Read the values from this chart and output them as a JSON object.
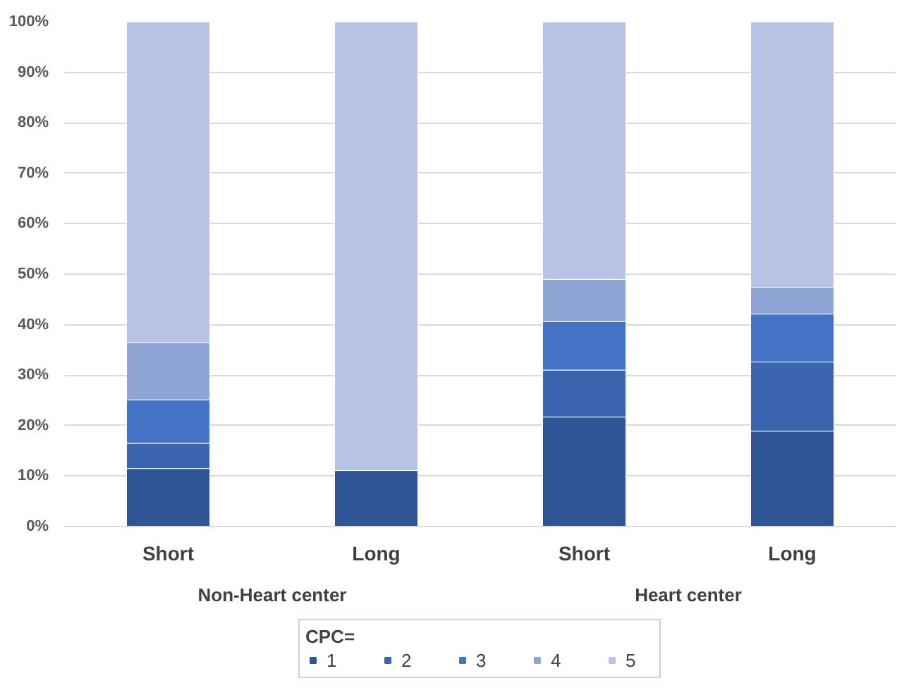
{
  "chart_data": {
    "type": "bar",
    "stacked": true,
    "categories": [
      "Short",
      "Long",
      "Short",
      "Long"
    ],
    "annotations": [
      "Non-Heart center",
      "Heart center"
    ],
    "legend_title": "CPC=",
    "series": [
      {
        "name": "1",
        "color": "#2f5597",
        "values": [
          11.5,
          11.1,
          21.7,
          18.9
        ]
      },
      {
        "name": "2",
        "color": "#3a64ad",
        "values": [
          5.0,
          0,
          9.3,
          13.7
        ]
      },
      {
        "name": "3",
        "color": "#4472c4",
        "values": [
          8.6,
          0,
          9.6,
          9.5
        ]
      },
      {
        "name": "4",
        "color": "#8fa5d6",
        "values": [
          11.4,
          0,
          8.4,
          5.3
        ]
      },
      {
        "name": "5",
        "color": "#b9c3e3",
        "values": [
          63.5,
          88.9,
          51.0,
          52.6
        ]
      }
    ],
    "ylim": [
      0,
      100
    ],
    "yticks": [
      {
        "value": 0,
        "label": "0%"
      },
      {
        "value": 10,
        "label": "10%"
      },
      {
        "value": 20,
        "label": "20%"
      },
      {
        "value": 30,
        "label": "30%"
      },
      {
        "value": 40,
        "label": "40%"
      },
      {
        "value": 50,
        "label": "50%"
      },
      {
        "value": 60,
        "label": "60%"
      },
      {
        "value": 70,
        "label": "70%"
      },
      {
        "value": 80,
        "label": "80%"
      },
      {
        "value": 90,
        "label": "90%"
      },
      {
        "value": 100,
        "label": "100%"
      }
    ],
    "grid": "y",
    "legend": "bottom"
  }
}
